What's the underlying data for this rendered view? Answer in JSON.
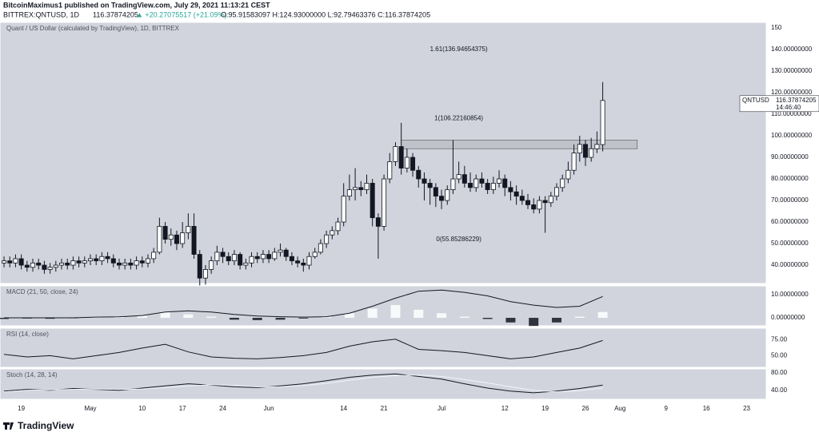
{
  "header": {
    "author_line": "BitcoinMaximus1 published on TradingView.com, July 29, 2021 11:13:21 CEST",
    "symbol": "BITTREX:QNTUSD, 1D",
    "last": "116.37874205",
    "change": "▲ +20.27075517 (+21.09%)",
    "ohlc": "O:95.91583097 H:124.93000000 L:92.79463376 C:116.37874205"
  },
  "footer": {
    "brand": "TradingView"
  },
  "chart_data": [
    {
      "type": "candlestick",
      "title": "Quant / US Dollar (calculated by TradingView), 1D, BITTREX",
      "up_color": "#ffffff",
      "down_color": "#131722",
      "candles": [
        [
          41,
          44,
          39,
          42
        ],
        [
          42,
          44,
          39,
          41
        ],
        [
          41,
          45,
          39,
          43
        ],
        [
          43,
          45,
          38,
          40
        ],
        [
          40,
          42,
          37,
          39
        ],
        [
          39,
          43,
          37,
          41
        ],
        [
          41,
          43,
          38,
          40
        ],
        [
          40,
          42,
          36,
          38
        ],
        [
          38,
          41,
          36,
          39
        ],
        [
          39,
          42,
          37,
          40
        ],
        [
          40,
          43,
          38,
          41
        ],
        [
          41,
          43,
          38,
          40
        ],
        [
          40,
          44,
          38,
          42
        ],
        [
          42,
          44,
          39,
          41
        ],
        [
          41,
          44,
          39,
          42
        ],
        [
          42,
          45,
          40,
          43
        ],
        [
          43,
          45,
          40,
          42
        ],
        [
          42,
          46,
          40,
          44
        ],
        [
          44,
          46,
          41,
          43
        ],
        [
          43,
          45,
          39,
          41
        ],
        [
          41,
          43,
          38,
          40
        ],
        [
          40,
          43,
          38,
          41
        ],
        [
          41,
          43,
          38,
          40
        ],
        [
          40,
          44,
          38,
          42
        ],
        [
          42,
          44,
          39,
          41
        ],
        [
          41,
          45,
          39,
          43
        ],
        [
          43,
          48,
          41,
          46
        ],
        [
          46,
          62,
          45,
          58
        ],
        [
          58,
          60,
          50,
          52
        ],
        [
          52,
          57,
          49,
          54
        ],
        [
          54,
          56,
          47,
          50
        ],
        [
          50,
          60,
          48,
          55
        ],
        [
          55,
          64,
          52,
          58
        ],
        [
          58,
          64,
          43,
          45
        ],
        [
          45,
          47,
          30,
          34
        ],
        [
          34,
          40,
          31,
          38
        ],
        [
          38,
          44,
          36,
          42
        ],
        [
          42,
          49,
          40,
          46
        ],
        [
          46,
          48,
          41,
          44
        ],
        [
          44,
          46,
          40,
          42
        ],
        [
          42,
          47,
          40,
          45
        ],
        [
          45,
          46,
          38,
          40
        ],
        [
          40,
          43,
          38,
          41
        ],
        [
          41,
          46,
          39,
          44
        ],
        [
          44,
          46,
          41,
          43
        ],
        [
          43,
          47,
          41,
          45
        ],
        [
          45,
          47,
          41,
          43
        ],
        [
          43,
          48,
          42,
          46
        ],
        [
          46,
          50,
          44,
          47
        ],
        [
          47,
          48,
          42,
          44
        ],
        [
          44,
          46,
          40,
          42
        ],
        [
          42,
          44,
          39,
          41
        ],
        [
          41,
          43,
          37,
          40
        ],
        [
          40,
          46,
          38,
          44
        ],
        [
          44,
          48,
          43,
          46
        ],
        [
          46,
          52,
          45,
          50
        ],
        [
          50,
          56,
          48,
          54
        ],
        [
          54,
          58,
          52,
          56
        ],
        [
          56,
          62,
          54,
          60
        ],
        [
          60,
          78,
          58,
          72
        ],
        [
          72,
          82,
          70,
          75
        ],
        [
          75,
          85,
          70,
          76
        ],
        [
          76,
          79,
          72,
          75
        ],
        [
          75,
          82,
          73,
          78
        ],
        [
          78,
          80,
          58,
          62
        ],
        [
          62,
          64,
          43,
          58
        ],
        [
          58,
          82,
          56,
          80
        ],
        [
          80,
          92,
          78,
          88
        ],
        [
          88,
          97,
          86,
          95
        ],
        [
          95,
          106,
          82,
          85
        ],
        [
          85,
          94,
          83,
          90
        ],
        [
          90,
          92,
          81,
          84
        ],
        [
          84,
          86,
          76,
          80
        ],
        [
          80,
          83,
          70,
          78
        ],
        [
          78,
          80,
          68,
          76
        ],
        [
          76,
          78,
          67,
          72
        ],
        [
          72,
          75,
          66,
          70
        ],
        [
          70,
          77,
          68,
          75
        ],
        [
          75,
          98,
          73,
          80
        ],
        [
          80,
          88,
          78,
          82
        ],
        [
          82,
          86,
          76,
          78
        ],
        [
          78,
          83,
          74,
          76
        ],
        [
          76,
          82,
          74,
          80
        ],
        [
          80,
          83,
          76,
          78
        ],
        [
          78,
          80,
          73,
          75
        ],
        [
          75,
          81,
          73,
          78
        ],
        [
          78,
          84,
          76,
          80
        ],
        [
          80,
          82,
          72,
          76
        ],
        [
          76,
          79,
          70,
          74
        ],
        [
          74,
          77,
          68,
          72
        ],
        [
          72,
          75,
          68,
          70
        ],
        [
          70,
          73,
          66,
          68
        ],
        [
          68,
          71,
          64,
          66
        ],
        [
          66,
          72,
          64,
          70
        ],
        [
          70,
          72,
          55,
          69
        ],
        [
          69,
          74,
          67,
          72
        ],
        [
          72,
          78,
          70,
          76
        ],
        [
          76,
          82,
          74,
          80
        ],
        [
          80,
          88,
          78,
          84
        ],
        [
          84,
          96,
          82,
          92
        ],
        [
          92,
          100,
          88,
          96
        ],
        [
          96,
          98,
          86,
          90
        ],
        [
          90,
          99,
          88,
          94
        ],
        [
          94,
          102,
          92,
          96
        ],
        [
          95.91583097,
          124.93,
          92.79463376,
          116.37874205
        ]
      ],
      "xlim": [
        -0.7,
        132.4
      ],
      "xticks": [
        {
          "value": 3,
          "label": "19"
        },
        {
          "value": 15,
          "label": "May"
        },
        {
          "value": 24,
          "label": "10"
        },
        {
          "value": 31,
          "label": "17"
        },
        {
          "value": 38,
          "label": "24"
        },
        {
          "value": 46,
          "label": "Jun"
        },
        {
          "value": 59,
          "label": "14"
        },
        {
          "value": 66,
          "label": "21"
        },
        {
          "value": 76,
          "label": "Jul"
        },
        {
          "value": 87,
          "label": "12"
        },
        {
          "value": 94,
          "label": "19"
        },
        {
          "value": 101,
          "label": "26"
        },
        {
          "value": 107,
          "label": "Aug"
        },
        {
          "value": 115,
          "label": "9"
        },
        {
          "value": 122,
          "label": "16"
        },
        {
          "value": 129,
          "label": "23"
        }
      ],
      "ylim": [
        31.5,
        152.6
      ],
      "yticks": [
        150,
        {
          "value": 140,
          "label": "140.00000000"
        },
        {
          "value": 130,
          "label": "130.00000000"
        },
        {
          "value": 120,
          "label": "120.00000000"
        },
        {
          "value": 110,
          "label": "110.00000000"
        },
        {
          "value": 100,
          "label": "100.00000000"
        },
        {
          "value": 90,
          "label": "90.00000000"
        },
        {
          "value": 80,
          "label": "80.00000000"
        },
        {
          "value": 70,
          "label": "70.00000000"
        },
        {
          "value": 60,
          "label": "60.00000000"
        },
        {
          "value": 50,
          "label": "50.00000000"
        },
        {
          "value": 40,
          "label": "40.00000000"
        }
      ],
      "zone": {
        "x": [
          69,
          110
        ],
        "y": [
          94,
          98
        ],
        "color": "#b8bbc2"
      },
      "annotations": [
        {
          "text": "1.61(136.94654375)",
          "x": 79,
          "y": 140
        },
        {
          "text": "1(106.22160854)",
          "x": 79,
          "y": 108
        },
        {
          "text": "0(55.85286229)",
          "x": 79,
          "y": 52
        }
      ],
      "price_tag": {
        "symbol": "QNTUSD",
        "price": "116.37874205",
        "countdown": "14:46:40"
      }
    },
    {
      "type": "indicator",
      "title": "MACD (21, 50, close, 24)",
      "x": [
        0,
        4,
        8,
        12,
        16,
        20,
        24,
        28,
        32,
        36,
        40,
        44,
        48,
        52,
        56,
        60,
        64,
        68,
        72,
        76,
        80,
        84,
        88,
        92,
        96,
        100,
        104
      ],
      "ylim": [
        -3.45,
        13.8
      ],
      "yticks": [
        {
          "value": 10,
          "label": "10.00000000"
        },
        {
          "value": 0,
          "label": "0.00000000"
        }
      ],
      "series": [
        {
          "type": "bar",
          "color": "#ffffff",
          "negative_color": "#131722",
          "values": [
            -0.5,
            -0.3,
            -0.4,
            -0.2,
            0.3,
            0.5,
            1,
            2.5,
            1.5,
            0.5,
            -0.8,
            -1,
            -0.8,
            -0.3,
            0.5,
            2,
            4,
            5.5,
            3.5,
            2,
            0.5,
            -0.5,
            -2,
            -3.5,
            -2,
            0.5,
            2.5
          ]
        },
        {
          "type": "line",
          "color": "#131722",
          "values": [
            0,
            0,
            0,
            0,
            0.3,
            0.4,
            1,
            2.5,
            3,
            2.5,
            1.5,
            0.8,
            0.5,
            0.3,
            0.5,
            2,
            5,
            8.5,
            11.5,
            12,
            11,
            9.5,
            7,
            5.5,
            4.5,
            5,
            9.2
          ]
        }
      ]
    },
    {
      "type": "indicator",
      "title": "RSI (14, close)",
      "x": [
        0,
        4,
        8,
        12,
        16,
        20,
        24,
        28,
        32,
        36,
        40,
        44,
        48,
        52,
        56,
        60,
        64,
        68,
        72,
        76,
        80,
        84,
        88,
        92,
        96,
        100,
        104
      ],
      "ylim": [
        31.6,
        93.4
      ],
      "yticks": [
        {
          "value": 75,
          "label": "75.00"
        },
        {
          "value": 50,
          "label": "50.00"
        }
      ],
      "series": [
        {
          "type": "line",
          "color": "#131722",
          "values": [
            52,
            48,
            50,
            45,
            50,
            55,
            62,
            68,
            56,
            48,
            46,
            45,
            47,
            50,
            55,
            65,
            72,
            76,
            60,
            58,
            55,
            50,
            45,
            48,
            55,
            62,
            74
          ]
        }
      ]
    },
    {
      "type": "indicator",
      "title": "Stoch (14, 28, 14)",
      "x": [
        0,
        4,
        8,
        12,
        16,
        20,
        24,
        28,
        32,
        36,
        40,
        44,
        48,
        52,
        56,
        60,
        64,
        68,
        72,
        76,
        80,
        84,
        88,
        92,
        96,
        100,
        104
      ],
      "ylim": [
        19,
        89.5
      ],
      "yticks": [
        {
          "value": 80,
          "label": "80.00"
        },
        {
          "value": 40,
          "label": "40.00"
        }
      ],
      "series": [
        {
          "type": "line",
          "color": "#131722",
          "values": [
            38,
            42,
            40,
            44,
            42,
            40,
            45,
            50,
            55,
            52,
            48,
            46,
            50,
            55,
            62,
            70,
            75,
            78,
            72,
            66,
            55,
            45,
            38,
            34,
            38,
            44,
            52
          ]
        },
        {
          "type": "line",
          "color": "#f0f3fa",
          "values": [
            36,
            40,
            41,
            42,
            43,
            42,
            43,
            46,
            50,
            53,
            51,
            48,
            48,
            51,
            56,
            63,
            70,
            74,
            75,
            72,
            65,
            57,
            48,
            40,
            36,
            39,
            45
          ]
        }
      ]
    }
  ]
}
